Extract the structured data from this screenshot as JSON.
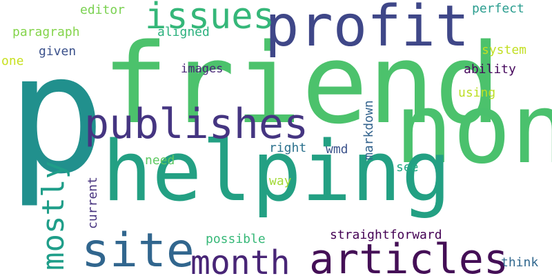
{
  "cloud": {
    "words": {
      "p": {
        "text": "p",
        "color": "#21908d"
      },
      "friend": {
        "text": "friend",
        "color": "#4cc26c"
      },
      "helping": {
        "text": "helping",
        "color": "#23a083"
      },
      "non": {
        "text": "non",
        "color": "#4ac16d"
      },
      "profit": {
        "text": "profit",
        "color": "#3f4788"
      },
      "issues": {
        "text": "issues",
        "color": "#35b779"
      },
      "publishes": {
        "text": "publishes",
        "color": "#453581"
      },
      "site": {
        "text": "site",
        "color": "#31668e"
      },
      "month": {
        "text": "month",
        "color": "#482576"
      },
      "articles": {
        "text": "articles",
        "color": "#440f56"
      },
      "mostly": {
        "text": "mostly",
        "color": "#1f9e89"
      },
      "editor": {
        "text": "editor",
        "color": "#7ad151"
      },
      "paragraph": {
        "text": "paragraph",
        "color": "#84d44b"
      },
      "aligned": {
        "text": "aligned",
        "color": "#2cb17e"
      },
      "given": {
        "text": "given",
        "color": "#3b518b"
      },
      "one": {
        "text": "one",
        "color": "#c8e020"
      },
      "images": {
        "text": "images",
        "color": "#482677"
      },
      "perfect": {
        "text": "perfect",
        "color": "#2a9d8f"
      },
      "system": {
        "text": "system",
        "color": "#c2df23"
      },
      "ability": {
        "text": "ability",
        "color": "#46085c"
      },
      "using": {
        "text": "using",
        "color": "#bddf26"
      },
      "right": {
        "text": "right",
        "color": "#2c728e"
      },
      "wmd": {
        "text": "wmd",
        "color": "#3b528b"
      },
      "need": {
        "text": "need",
        "color": "#5ec962"
      },
      "see": {
        "text": "see",
        "color": "#22a884"
      },
      "way": {
        "text": "way",
        "color": "#a2da37"
      },
      "possible": {
        "text": "possible",
        "color": "#37b878"
      },
      "straightforward": {
        "text": "straightforward",
        "color": "#440154"
      },
      "think": {
        "text": "think",
        "color": "#31688e"
      },
      "markdown": {
        "text": "markdown",
        "color": "#33638d"
      },
      "current": {
        "text": "current",
        "color": "#46327e"
      }
    }
  }
}
